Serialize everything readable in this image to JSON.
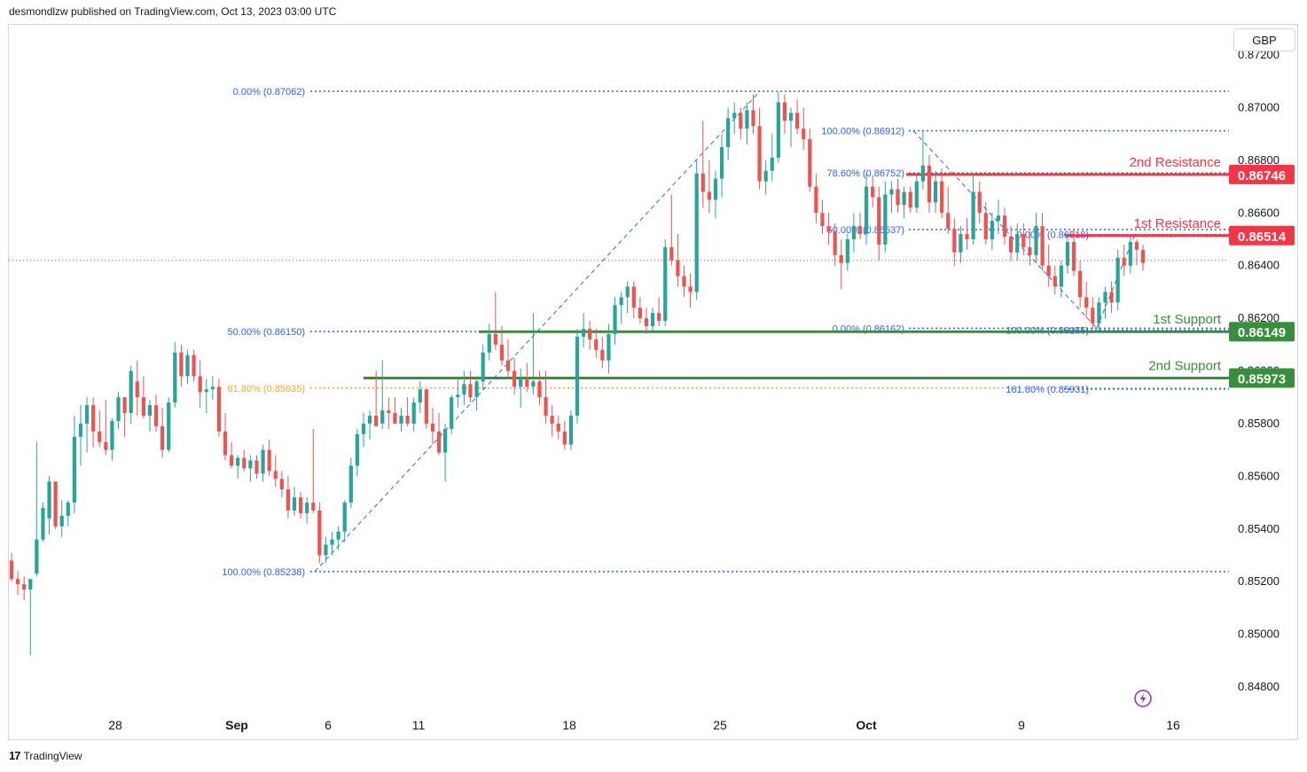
{
  "header": {
    "published": "desmondlzw published on TradingView.com, Oct 13, 2023 03:00 UTC"
  },
  "currency": "GBP",
  "footer": {
    "logo_icon": "tradingview-logo-icon",
    "brand": "TradingView"
  },
  "colors": {
    "up": "#26a69a",
    "down": "#ef5350",
    "resistance": "#f23645",
    "support": "#388e3c",
    "fib": "#2962ff",
    "fib_gold": "#f9a825",
    "axis_text": "#131722",
    "last_price": "#f23645"
  },
  "chart_data": {
    "type": "candlestick",
    "symbol_currency": "GBP",
    "ylim": [
      0.8474,
      0.8725
    ],
    "y_ticks": [
      "0.87200",
      "0.87000",
      "0.86800",
      "0.86600",
      "0.86400",
      "0.86200",
      "0.86000",
      "0.85800",
      "0.85600",
      "0.85400",
      "0.85200",
      "0.85000",
      "0.84800"
    ],
    "x_ticks": [
      "28",
      "Sep",
      "6",
      "11",
      "18",
      "25",
      "Oct",
      "9",
      "16"
    ],
    "last_price": 0.8642,
    "levels": [
      {
        "label": "2nd Resistance",
        "value": "0.86746",
        "kind": "resistance"
      },
      {
        "label": "1st Resistance",
        "value": "0.86514",
        "kind": "resistance"
      },
      {
        "label": "1st Support",
        "value": "0.86149",
        "kind": "support"
      },
      {
        "label": "2nd Support",
        "value": "0.85973",
        "kind": "support"
      }
    ],
    "fib_labels": [
      {
        "text": "0.00% (0.87062)",
        "price": 0.87062
      },
      {
        "text": "50.00% (0.86150)",
        "price": 0.8615
      },
      {
        "text": "61.80% (0.85935)",
        "price": 0.85935,
        "color": "gold"
      },
      {
        "text": "100.00% (0.85238)",
        "price": 0.85238
      },
      {
        "text": "100.00% (0.86912)",
        "price": 0.86912
      },
      {
        "text": "78.60% (0.86752)",
        "price": 0.86752
      },
      {
        "text": "50.00% (0.86537)",
        "price": 0.86537
      },
      {
        "text": "0.00% (0.86162)",
        "price": 0.86162
      },
      {
        "text": "0.00% (0.86518)",
        "price": 0.86518
      },
      {
        "text": "100.00% (0.86155)",
        "price": 0.86155
      },
      {
        "text": "161.80% (0.85931)",
        "price": 0.85931
      }
    ],
    "candles": [
      [
        0.8528,
        0.8531,
        0.852,
        0.8521
      ],
      [
        0.8521,
        0.8524,
        0.8515,
        0.8519
      ],
      [
        0.8519,
        0.8522,
        0.8513,
        0.8517
      ],
      [
        0.8517,
        0.852,
        0.8492,
        0.8521
      ],
      [
        0.8523,
        0.8573,
        0.8522,
        0.8536
      ],
      [
        0.8536,
        0.855,
        0.8535,
        0.8548
      ],
      [
        0.8544,
        0.856,
        0.8538,
        0.8558
      ],
      [
        0.8558,
        0.8558,
        0.854,
        0.8541
      ],
      [
        0.8541,
        0.8551,
        0.8537,
        0.8545
      ],
      [
        0.8545,
        0.8551,
        0.8541,
        0.855
      ],
      [
        0.855,
        0.8583,
        0.8546,
        0.8575
      ],
      [
        0.8575,
        0.8587,
        0.8564,
        0.858
      ],
      [
        0.858,
        0.859,
        0.8569,
        0.8587
      ],
      [
        0.8587,
        0.859,
        0.8571,
        0.8577
      ],
      [
        0.8577,
        0.8585,
        0.8571,
        0.8573
      ],
      [
        0.8573,
        0.8589,
        0.8568,
        0.857
      ],
      [
        0.857,
        0.8582,
        0.8566,
        0.8581
      ],
      [
        0.8581,
        0.8592,
        0.8578,
        0.859
      ],
      [
        0.859,
        0.859,
        0.8575,
        0.8584
      ],
      [
        0.8584,
        0.8602,
        0.858,
        0.86
      ],
      [
        0.8596,
        0.8604,
        0.8583,
        0.859
      ],
      [
        0.859,
        0.8598,
        0.8582,
        0.8583
      ],
      [
        0.8583,
        0.8589,
        0.8577,
        0.8587
      ],
      [
        0.8587,
        0.8591,
        0.8577,
        0.8579
      ],
      [
        0.8579,
        0.8586,
        0.8567,
        0.857
      ],
      [
        0.857,
        0.859,
        0.8569,
        0.8588
      ],
      [
        0.8588,
        0.8611,
        0.8586,
        0.8607
      ],
      [
        0.8607,
        0.861,
        0.8594,
        0.8598
      ],
      [
        0.8598,
        0.8608,
        0.8595,
        0.8606
      ],
      [
        0.8606,
        0.8608,
        0.8596,
        0.8598
      ],
      [
        0.8598,
        0.8604,
        0.8586,
        0.8592
      ],
      [
        0.8592,
        0.8597,
        0.8584,
        0.8593
      ],
      [
        0.8593,
        0.8598,
        0.8589,
        0.8594
      ],
      [
        0.8594,
        0.8597,
        0.8575,
        0.8577
      ],
      [
        0.8577,
        0.8584,
        0.8566,
        0.8568
      ],
      [
        0.8568,
        0.8573,
        0.8563,
        0.8564
      ],
      [
        0.8564,
        0.8568,
        0.8559,
        0.8567
      ],
      [
        0.8567,
        0.857,
        0.8562,
        0.8563
      ],
      [
        0.8563,
        0.8568,
        0.8558,
        0.8566
      ],
      [
        0.8566,
        0.8568,
        0.8559,
        0.8561
      ],
      [
        0.8561,
        0.8572,
        0.8558,
        0.857
      ],
      [
        0.857,
        0.8574,
        0.856,
        0.8562
      ],
      [
        0.8562,
        0.8568,
        0.8556,
        0.8559
      ],
      [
        0.8559,
        0.8562,
        0.8552,
        0.8555
      ],
      [
        0.8555,
        0.856,
        0.8544,
        0.8547
      ],
      [
        0.8547,
        0.8556,
        0.8545,
        0.8552
      ],
      [
        0.8552,
        0.8554,
        0.8544,
        0.8546
      ],
      [
        0.8546,
        0.8552,
        0.8542,
        0.855
      ],
      [
        0.855,
        0.8578,
        0.8546,
        0.8547
      ],
      [
        0.8547,
        0.855,
        0.8527,
        0.853
      ],
      [
        0.853,
        0.8537,
        0.8527,
        0.8534
      ],
      [
        0.8534,
        0.8539,
        0.853,
        0.8536
      ],
      [
        0.8536,
        0.8541,
        0.8532,
        0.8539
      ],
      [
        0.8539,
        0.8551,
        0.8535,
        0.855
      ],
      [
        0.855,
        0.8567,
        0.8548,
        0.8564
      ],
      [
        0.8564,
        0.8578,
        0.856,
        0.8576
      ],
      [
        0.8576,
        0.8584,
        0.8571,
        0.858
      ],
      [
        0.858,
        0.8585,
        0.8574,
        0.8583
      ],
      [
        0.8583,
        0.86,
        0.8579,
        0.8579
      ],
      [
        0.858,
        0.8604,
        0.8578,
        0.8585
      ],
      [
        0.8585,
        0.859,
        0.8578,
        0.8584
      ],
      [
        0.8584,
        0.859,
        0.858,
        0.858
      ],
      [
        0.858,
        0.8586,
        0.8577,
        0.8583
      ],
      [
        0.8583,
        0.859,
        0.8579,
        0.858
      ],
      [
        0.858,
        0.859,
        0.8577,
        0.8588
      ],
      [
        0.8588,
        0.8596,
        0.8584,
        0.8593
      ],
      [
        0.8593,
        0.8593,
        0.8578,
        0.858
      ],
      [
        0.858,
        0.8586,
        0.8572,
        0.8577
      ],
      [
        0.8577,
        0.8584,
        0.8568,
        0.8569
      ],
      [
        0.8569,
        0.858,
        0.8558,
        0.8578
      ],
      [
        0.8578,
        0.8591,
        0.8576,
        0.859
      ],
      [
        0.859,
        0.8597,
        0.8586,
        0.8591
      ],
      [
        0.8591,
        0.86,
        0.8587,
        0.8595
      ],
      [
        0.8595,
        0.86,
        0.8588,
        0.859
      ],
      [
        0.859,
        0.8598,
        0.8585,
        0.8596
      ],
      [
        0.8596,
        0.861,
        0.8593,
        0.8607
      ],
      [
        0.8607,
        0.8618,
        0.8604,
        0.8614
      ],
      [
        0.8614,
        0.863,
        0.8608,
        0.861
      ],
      [
        0.861,
        0.8617,
        0.8602,
        0.8604
      ],
      [
        0.8604,
        0.8612,
        0.8597,
        0.86
      ],
      [
        0.86,
        0.8605,
        0.8591,
        0.8594
      ],
      [
        0.8594,
        0.8601,
        0.8586,
        0.8597
      ],
      [
        0.8597,
        0.8603,
        0.8592,
        0.8594
      ],
      [
        0.8594,
        0.8622,
        0.8591,
        0.8596
      ],
      [
        0.8596,
        0.86,
        0.8587,
        0.859
      ],
      [
        0.859,
        0.86,
        0.858,
        0.8583
      ],
      [
        0.8583,
        0.8587,
        0.8575,
        0.858
      ],
      [
        0.858,
        0.8583,
        0.8574,
        0.8577
      ],
      [
        0.8577,
        0.8581,
        0.857,
        0.8572
      ],
      [
        0.8572,
        0.8585,
        0.857,
        0.8583
      ],
      [
        0.8583,
        0.8616,
        0.858,
        0.8613
      ],
      [
        0.8613,
        0.8622,
        0.8609,
        0.8616
      ],
      [
        0.8616,
        0.8619,
        0.8608,
        0.8612
      ],
      [
        0.8612,
        0.8616,
        0.8605,
        0.8608
      ],
      [
        0.8608,
        0.8613,
        0.8601,
        0.8604
      ],
      [
        0.8604,
        0.8618,
        0.8599,
        0.8614
      ],
      [
        0.8614,
        0.8628,
        0.861,
        0.8625
      ],
      [
        0.8625,
        0.863,
        0.8618,
        0.8628
      ],
      [
        0.8628,
        0.8634,
        0.8622,
        0.8632
      ],
      [
        0.8632,
        0.8634,
        0.862,
        0.8624
      ],
      [
        0.8624,
        0.8628,
        0.8618,
        0.862
      ],
      [
        0.862,
        0.8624,
        0.8614,
        0.8617
      ],
      [
        0.8617,
        0.8624,
        0.8615,
        0.8622
      ],
      [
        0.8622,
        0.8628,
        0.8617,
        0.8619
      ],
      [
        0.8619,
        0.865,
        0.8617,
        0.8647
      ],
      [
        0.8647,
        0.8667,
        0.864,
        0.8642
      ],
      [
        0.8642,
        0.8652,
        0.8632,
        0.8636
      ],
      [
        0.8636,
        0.864,
        0.8628,
        0.8632
      ],
      [
        0.8632,
        0.8637,
        0.8624,
        0.863
      ],
      [
        0.863,
        0.868,
        0.8627,
        0.8675
      ],
      [
        0.8675,
        0.8695,
        0.8662,
        0.8668
      ],
      [
        0.8668,
        0.868,
        0.866,
        0.8665
      ],
      [
        0.8665,
        0.8676,
        0.8658,
        0.8673
      ],
      [
        0.8673,
        0.869,
        0.8666,
        0.8685
      ],
      [
        0.8685,
        0.87,
        0.868,
        0.8696
      ],
      [
        0.8696,
        0.8702,
        0.869,
        0.8698
      ],
      [
        0.8698,
        0.87,
        0.8688,
        0.8692
      ],
      [
        0.8692,
        0.8702,
        0.8686,
        0.8699
      ],
      [
        0.8699,
        0.8705,
        0.869,
        0.8693
      ],
      [
        0.8693,
        0.87,
        0.8669,
        0.8672
      ],
      [
        0.8672,
        0.868,
        0.8667,
        0.8676
      ],
      [
        0.8676,
        0.869,
        0.8672,
        0.8681
      ],
      [
        0.8681,
        0.8706,
        0.8679,
        0.8702
      ],
      [
        0.8702,
        0.8705,
        0.869,
        0.8695
      ],
      [
        0.8695,
        0.87,
        0.8685,
        0.8698
      ],
      [
        0.8698,
        0.8703,
        0.869,
        0.8692
      ],
      [
        0.8692,
        0.87,
        0.8684,
        0.8688
      ],
      [
        0.8688,
        0.8692,
        0.8668,
        0.867
      ],
      [
        0.867,
        0.8675,
        0.8656,
        0.866
      ],
      [
        0.866,
        0.8665,
        0.8652,
        0.8655
      ],
      [
        0.8655,
        0.866,
        0.8648,
        0.8653
      ],
      [
        0.8653,
        0.8656,
        0.864,
        0.8644
      ],
      [
        0.8644,
        0.865,
        0.8631,
        0.8641
      ],
      [
        0.8641,
        0.8652,
        0.8638,
        0.865
      ],
      [
        0.865,
        0.866,
        0.8645,
        0.8655
      ],
      [
        0.8655,
        0.866,
        0.865,
        0.8652
      ],
      [
        0.8652,
        0.8675,
        0.8648,
        0.867
      ],
      [
        0.867,
        0.8674,
        0.8662,
        0.8666
      ],
      [
        0.8666,
        0.867,
        0.8642,
        0.8648
      ],
      [
        0.8648,
        0.8672,
        0.8645,
        0.8667
      ],
      [
        0.8667,
        0.8672,
        0.866,
        0.8669
      ],
      [
        0.8669,
        0.8673,
        0.866,
        0.8663
      ],
      [
        0.8663,
        0.867,
        0.8658,
        0.8668
      ],
      [
        0.8668,
        0.867,
        0.866,
        0.8662
      ],
      [
        0.8662,
        0.8674,
        0.866,
        0.8672
      ],
      [
        0.8672,
        0.8691,
        0.8669,
        0.8678
      ],
      [
        0.8678,
        0.8682,
        0.866,
        0.8664
      ],
      [
        0.8664,
        0.8676,
        0.866,
        0.8672
      ],
      [
        0.8672,
        0.8677,
        0.8658,
        0.866
      ],
      [
        0.866,
        0.867,
        0.8652,
        0.8654
      ],
      [
        0.8654,
        0.8658,
        0.864,
        0.8645
      ],
      [
        0.8645,
        0.8655,
        0.8641,
        0.8652
      ],
      [
        0.8652,
        0.8658,
        0.8646,
        0.865
      ],
      [
        0.865,
        0.8675,
        0.8648,
        0.8668
      ],
      [
        0.8668,
        0.8672,
        0.8656,
        0.866
      ],
      [
        0.866,
        0.8664,
        0.8648,
        0.865
      ],
      [
        0.865,
        0.866,
        0.8646,
        0.8657
      ],
      [
        0.8657,
        0.8665,
        0.8652,
        0.8659
      ],
      [
        0.8659,
        0.8662,
        0.8648,
        0.8651
      ],
      [
        0.8651,
        0.8655,
        0.8642,
        0.8645
      ],
      [
        0.8645,
        0.8656,
        0.8642,
        0.8652
      ],
      [
        0.8652,
        0.8656,
        0.8644,
        0.8647
      ],
      [
        0.8647,
        0.8653,
        0.864,
        0.8644
      ],
      [
        0.8644,
        0.866,
        0.8641,
        0.8655
      ],
      [
        0.8655,
        0.866,
        0.8638,
        0.864
      ],
      [
        0.864,
        0.8648,
        0.8632,
        0.8636
      ],
      [
        0.8636,
        0.864,
        0.8629,
        0.8632
      ],
      [
        0.8632,
        0.8642,
        0.8628,
        0.864
      ],
      [
        0.864,
        0.8652,
        0.8637,
        0.8649
      ],
      [
        0.8649,
        0.8654,
        0.8636,
        0.8638
      ],
      [
        0.8638,
        0.8642,
        0.8624,
        0.8628
      ],
      [
        0.8628,
        0.8634,
        0.862,
        0.8624
      ],
      [
        0.8624,
        0.8628,
        0.8616,
        0.8618
      ],
      [
        0.8618,
        0.8628,
        0.8615,
        0.8626
      ],
      [
        0.8626,
        0.8632,
        0.862,
        0.863
      ],
      [
        0.863,
        0.8634,
        0.8622,
        0.8626
      ],
      [
        0.8626,
        0.8646,
        0.8623,
        0.8643
      ],
      [
        0.8643,
        0.8648,
        0.8636,
        0.864
      ],
      [
        0.864,
        0.8651,
        0.8637,
        0.8649
      ],
      [
        0.8649,
        0.865,
        0.864,
        0.8646
      ],
      [
        0.8646,
        0.8648,
        0.8638,
        0.8641
      ]
    ]
  }
}
